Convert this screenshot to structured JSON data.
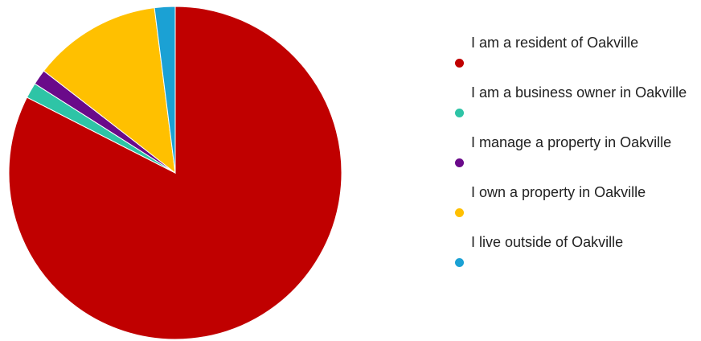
{
  "chart_data": {
    "type": "pie",
    "slices": [
      {
        "label": "I am a resident of Oakville",
        "value": 82.5,
        "color": "#c00000"
      },
      {
        "label": "I am a business owner in Oakville",
        "value": 1.5,
        "color": "#2ec4a6"
      },
      {
        "label": "I manage a property in Oakville",
        "value": 1.5,
        "color": "#6a0a8a"
      },
      {
        "label": "I own a property in Oakville",
        "value": 12.5,
        "color": "#ffc000"
      },
      {
        "label": "I live outside of Oakville",
        "value": 2.0,
        "color": "#1ba1d4"
      }
    ],
    "legend_position": "right"
  }
}
